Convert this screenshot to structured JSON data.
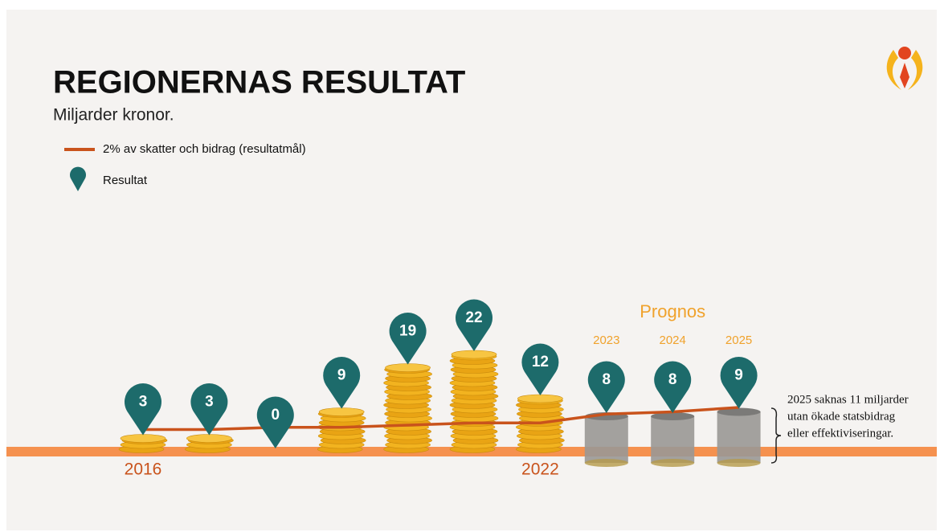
{
  "chart_data": {
    "type": "coin-stacks",
    "title": "REGIONERNAS RESULTAT",
    "subtitle": "Miljarder kronor.",
    "categories": [
      "2016",
      null,
      null,
      null,
      null,
      null,
      "2022",
      null,
      null,
      null
    ],
    "series": [
      {
        "name": "Resultat",
        "color": "#1d6b6b",
        "values": [
          3,
          3,
          0,
          9,
          19,
          22,
          12,
          8,
          8,
          9
        ]
      },
      {
        "name": "2% av skatter och bidrag (resultatmål)",
        "color": "#c9531c",
        "values": [
          5,
          5,
          5.5,
          5.5,
          6,
          6.5,
          6.5,
          8.5,
          9,
          10
        ]
      }
    ],
    "forecast": {
      "label": "Prognos",
      "categories": [
        null,
        null,
        null,
        null,
        null,
        null,
        null,
        "2023",
        "2024",
        "2025"
      ]
    },
    "annotation": [
      "2025 saknas 11 miljarder",
      "utan ökade statsbidrag",
      "eller effektiviseringar."
    ]
  }
}
